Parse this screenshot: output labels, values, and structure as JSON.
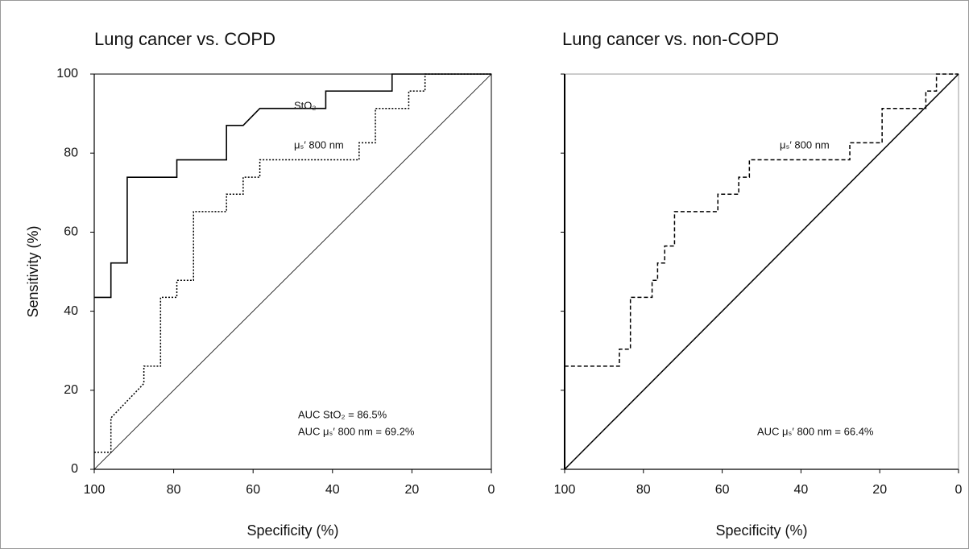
{
  "chart_data": [
    {
      "type": "line",
      "title": "Lung cancer vs. COPD",
      "x_label": "Specificity  (%)",
      "y_label": "Sensitivity (%)",
      "xlim": [
        100,
        0
      ],
      "ylim": [
        0,
        100
      ],
      "xticks": [
        100,
        80,
        60,
        40,
        20,
        0
      ],
      "yticks": [
        0,
        20,
        40,
        60,
        80,
        100
      ],
      "show_ytick_labels": true,
      "series": [
        {
          "name": "StO₂",
          "color": "#000000",
          "style": "solid",
          "x": [
            100,
            95.8,
            95.8,
            91.7,
            91.7,
            79.2,
            79.2,
            66.7,
            66.7,
            62.5,
            58.3,
            41.7,
            41.7,
            25,
            25,
            0
          ],
          "values": [
            43.5,
            43.5,
            52.2,
            52.2,
            73.9,
            73.9,
            78.3,
            78.3,
            87,
            87,
            91.3,
            91.3,
            95.7,
            95.7,
            100,
            100
          ]
        },
        {
          "name": "μₛ′ 800 nm",
          "color": "#000000",
          "style": "dotted",
          "x": [
            100,
            95.8,
            95.8,
            87.5,
            87.5,
            83.3,
            83.3,
            79.2,
            79.2,
            75,
            75,
            66.7,
            66.7,
            62.5,
            62.5,
            58.3,
            58.3,
            33.3,
            33.3,
            29.2,
            29.2,
            20.8,
            20.8,
            16.7,
            16.7,
            0
          ],
          "values": [
            4.3,
            4.3,
            13,
            21.7,
            26.1,
            26.1,
            43.5,
            43.5,
            47.8,
            47.8,
            65.2,
            65.2,
            69.6,
            69.6,
            73.9,
            73.9,
            78.3,
            78.3,
            82.6,
            82.6,
            91.3,
            91.3,
            95.7,
            95.7,
            100,
            100
          ]
        }
      ],
      "annotations": [
        "AUC StO₂ = 86.5%",
        "AUC μₛ′ 800 nm = 69.2%"
      ]
    },
    {
      "type": "line",
      "title": "Lung cancer vs. non-COPD",
      "x_label": "Specificity  (%)",
      "xlim": [
        100,
        0
      ],
      "ylim": [
        0,
        100
      ],
      "xticks": [
        100,
        80,
        60,
        40,
        20,
        0
      ],
      "yticks": [
        0,
        20,
        40,
        60,
        80,
        100
      ],
      "show_ytick_labels": false,
      "series": [
        {
          "name": "μₛ′ 800 nm",
          "color": "#000000",
          "style": "dashed",
          "x": [
            100,
            100,
            86.1,
            86.1,
            83.3,
            83.3,
            77.8,
            77.8,
            76.4,
            76.4,
            74.6,
            74.6,
            72.1,
            72.1,
            61.1,
            61.1,
            55.8,
            55.8,
            53.1,
            53.1,
            27.6,
            27.6,
            19.4,
            19.4,
            8.3,
            8.3,
            5.6,
            5.6,
            0
          ],
          "values": [
            0,
            26.1,
            26.1,
            30.4,
            30.4,
            43.5,
            43.5,
            47.8,
            47.8,
            52.2,
            52.2,
            56.5,
            56.5,
            65.2,
            65.2,
            69.6,
            69.6,
            73.9,
            73.9,
            78.3,
            78.3,
            82.6,
            82.6,
            91.3,
            91.3,
            95.7,
            95.7,
            100,
            100
          ]
        }
      ],
      "annotations": [
        "AUC μₛ′ 800 nm = 66.4%"
      ]
    }
  ]
}
